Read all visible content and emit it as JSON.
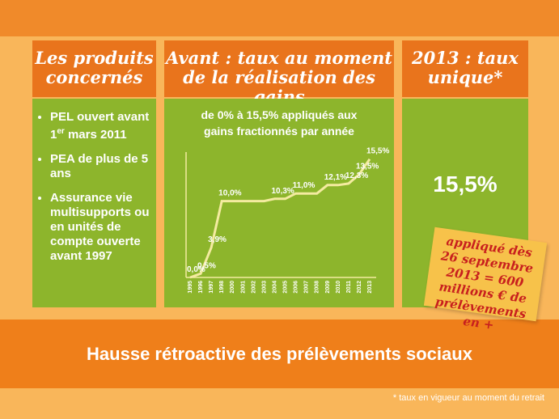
{
  "columns": [
    {
      "title": "Les produits concernés"
    },
    {
      "title": "Avant : taux au moment de la réalisation des gains",
      "subtitle": "de 0% à 15,5% appliqués aux gains fractionnés par année"
    },
    {
      "title": "2013 : taux unique*",
      "rate": "15,5%"
    }
  ],
  "bullets": [
    {
      "text": "PEL ouvert avant 1",
      "sup": "er",
      "after": " mars 2011"
    },
    {
      "text": "PEA de plus de 5 ans"
    },
    {
      "text": "Assurance vie multisupports ou en unités de compte ouverte avant 1997"
    }
  ],
  "note": "appliqué dès 26 septembre 2013 = 600 millions € de prélèvements en +",
  "banner": "Hausse rétroactive des prélèvements sociaux",
  "footnote": "* taux en vigueur au moment du retrait",
  "chart_data": {
    "type": "line",
    "categories": [
      "1995",
      "1996",
      "1997",
      "1998",
      "2000",
      "2001",
      "2002",
      "2003",
      "2004",
      "2005",
      "2006",
      "2007",
      "2008",
      "2009",
      "2010",
      "2011",
      "2012",
      "2013"
    ],
    "values": [
      0,
      0.5,
      3.9,
      10,
      10,
      10,
      10,
      10,
      10.3,
      10.3,
      11,
      11,
      11,
      12.1,
      12.1,
      12.3,
      13.5,
      15.5
    ],
    "value_labels": [
      "0,0%",
      "0,5%",
      "3,9%",
      "10,0%",
      null,
      null,
      null,
      null,
      "10,3%",
      null,
      "11,0%",
      null,
      null,
      "12,1%",
      null,
      "12,3%",
      "13,5%",
      "15,5%"
    ],
    "color": "#f4eba0",
    "ylim": [
      0,
      16
    ]
  }
}
